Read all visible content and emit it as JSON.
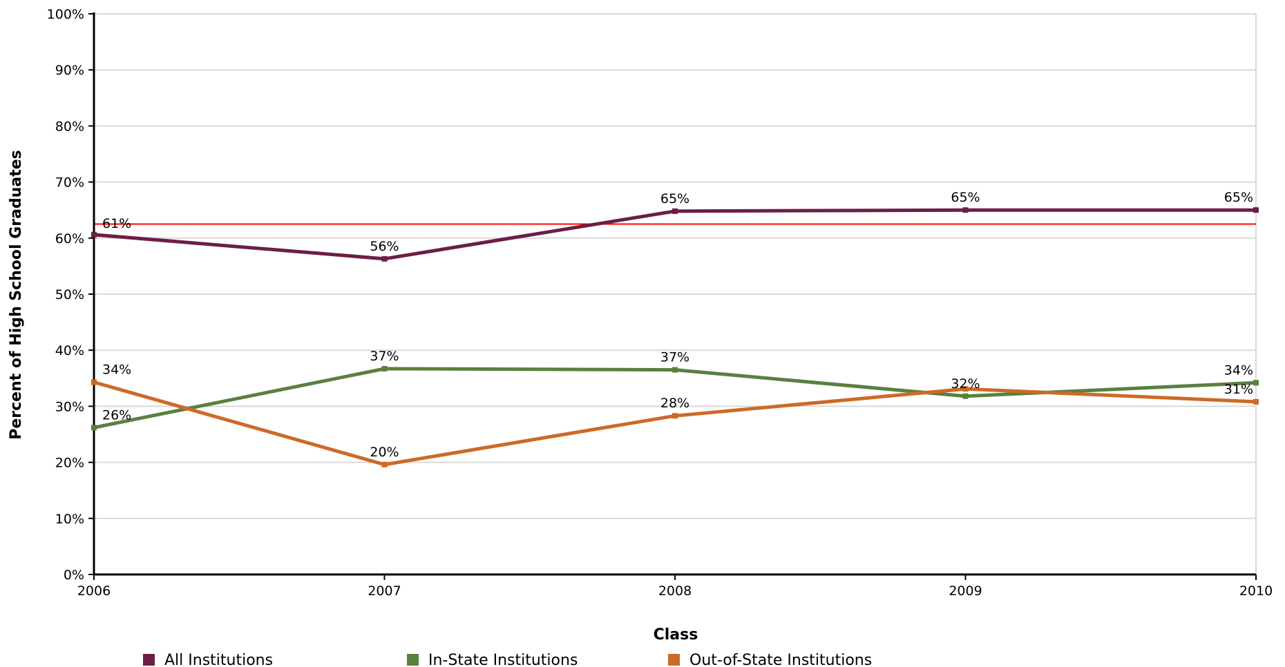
{
  "chart_data": {
    "type": "line",
    "title": "",
    "xlabel": "Class",
    "ylabel": "Percent of High School Graduates",
    "x": [
      "2006",
      "2007",
      "2008",
      "2009",
      "2010"
    ],
    "ylim": [
      0,
      100
    ],
    "y_ticks": [
      0,
      10,
      20,
      30,
      40,
      50,
      60,
      70,
      80,
      90,
      100
    ],
    "y_tick_labels": [
      "0%",
      "10%",
      "20%",
      "30%",
      "40%",
      "50%",
      "60%",
      "70%",
      "80%",
      "90%",
      "100%"
    ],
    "grid": true,
    "legend_position": "bottom",
    "reference_line": {
      "value": 62.5,
      "color": "#ff0000"
    },
    "series": [
      {
        "name": "All Institutions",
        "color": "#6b1f45",
        "values": [
          60.6,
          56.3,
          64.8,
          65.0,
          65.0
        ],
        "labels": [
          "61%",
          "56%",
          "65%",
          "65%",
          "65%"
        ]
      },
      {
        "name": "In-State Institutions",
        "color": "#5a8040",
        "values": [
          26.2,
          36.7,
          36.5,
          31.8,
          34.2
        ],
        "labels": [
          "26%",
          "37%",
          "37%",
          "32%",
          "34%"
        ]
      },
      {
        "name": "Out-of-State Institutions",
        "color": "#cc6a27",
        "values": [
          34.3,
          19.6,
          28.3,
          33.1,
          30.8
        ],
        "labels": [
          "34%",
          "20%",
          "28%",
          "",
          "31%"
        ]
      }
    ]
  }
}
